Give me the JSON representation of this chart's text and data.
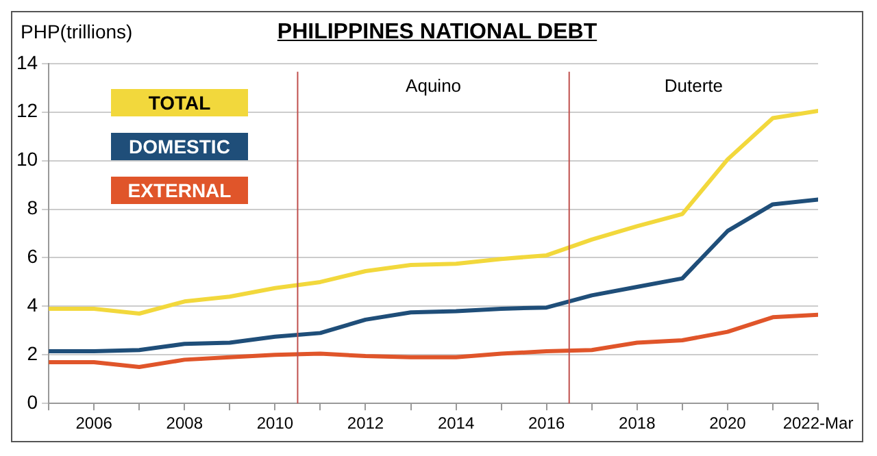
{
  "chart_data": {
    "type": "line",
    "title": "PHILIPPINES NATIONAL DEBT",
    "ylabel": "PHP(trillions)",
    "x": [
      2005,
      2006,
      2007,
      2008,
      2009,
      2010,
      2011,
      2012,
      2013,
      2014,
      2015,
      2016,
      2017,
      2018,
      2019,
      2020,
      2021,
      2022
    ],
    "series": [
      {
        "name": "TOTAL",
        "color": "#f2d83c",
        "values": [
          3.9,
          3.9,
          3.7,
          4.2,
          4.4,
          4.75,
          5.0,
          5.45,
          5.7,
          5.75,
          5.95,
          6.1,
          6.75,
          7.3,
          7.8,
          10.05,
          11.75,
          12.05
        ]
      },
      {
        "name": "DOMESTIC",
        "color": "#1f4e79",
        "values": [
          2.15,
          2.15,
          2.2,
          2.45,
          2.5,
          2.75,
          2.9,
          3.45,
          3.75,
          3.8,
          3.9,
          3.95,
          4.45,
          4.8,
          5.15,
          7.1,
          8.2,
          8.4
        ]
      },
      {
        "name": "EXTERNAL",
        "color": "#e0552a",
        "values": [
          1.7,
          1.7,
          1.5,
          1.8,
          1.9,
          2.0,
          2.05,
          1.95,
          1.9,
          1.9,
          2.05,
          2.15,
          2.2,
          2.5,
          2.6,
          2.95,
          3.55,
          3.65
        ]
      }
    ],
    "xlim": [
      2005,
      2022
    ],
    "xticks": [
      {
        "value": 2005,
        "label": null
      },
      {
        "value": 2006,
        "label": "2006"
      },
      {
        "value": 2007,
        "label": null
      },
      {
        "value": 2008,
        "label": "2008"
      },
      {
        "value": 2009,
        "label": null
      },
      {
        "value": 2010,
        "label": "2010"
      },
      {
        "value": 2011,
        "label": null
      },
      {
        "value": 2012,
        "label": "2012"
      },
      {
        "value": 2013,
        "label": null
      },
      {
        "value": 2014,
        "label": "2014"
      },
      {
        "value": 2015,
        "label": null
      },
      {
        "value": 2016,
        "label": "2016"
      },
      {
        "value": 2017,
        "label": null
      },
      {
        "value": 2018,
        "label": "2018"
      },
      {
        "value": 2019,
        "label": null
      },
      {
        "value": 2020,
        "label": "2020"
      },
      {
        "value": 2021,
        "label": null
      },
      {
        "value": 2022,
        "label": "2022-Mar"
      }
    ],
    "ylim": [
      0,
      14
    ],
    "yticks": [
      0,
      2,
      4,
      6,
      8,
      10,
      12,
      14
    ],
    "ref_lines": [
      {
        "axis": "x",
        "value": 2010.5,
        "label": null,
        "color": "#c0504d"
      },
      {
        "axis": "x",
        "value": 2016.5,
        "label": null,
        "color": "#c0504d"
      }
    ],
    "annotations": [
      "Aquino",
      "Duterte"
    ],
    "grid": "y",
    "legend": "top left",
    "marker": "none",
    "line_style": "solid"
  }
}
